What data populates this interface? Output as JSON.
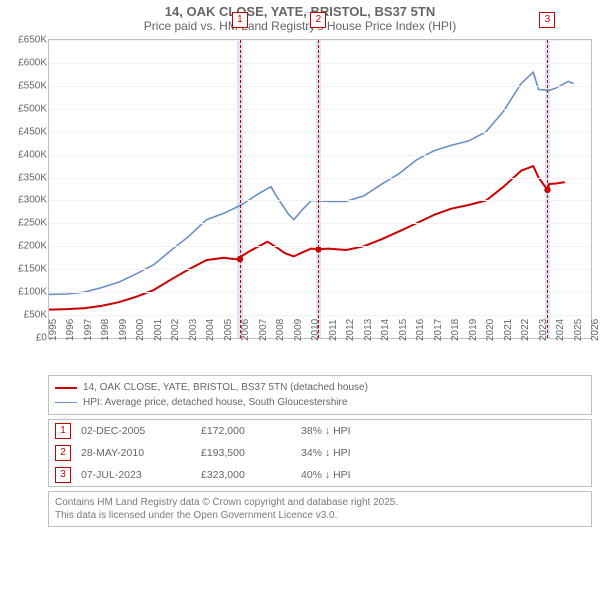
{
  "title": {
    "line1": "14, OAK CLOSE, YATE, BRISTOL, BS37 5TN",
    "line2": "Price paid vs. HM Land Registry's House Price Index (HPI)"
  },
  "chart": {
    "type": "line",
    "yaxis": {
      "min": 0,
      "max": 650000,
      "ticks": [
        0,
        50000,
        100000,
        150000,
        200000,
        250000,
        300000,
        350000,
        400000,
        450000,
        500000,
        550000,
        600000,
        650000
      ],
      "tick_labels": [
        "£0",
        "£50K",
        "£100K",
        "£150K",
        "£200K",
        "£250K",
        "£300K",
        "£350K",
        "£400K",
        "£450K",
        "£500K",
        "£550K",
        "£600K",
        "£650K"
      ],
      "label_fontsize": 10,
      "label_color": "#666666"
    },
    "xaxis": {
      "min": 1995,
      "max": 2026,
      "ticks": [
        1995,
        1996,
        1997,
        1998,
        1999,
        2000,
        2001,
        2002,
        2003,
        2004,
        2005,
        2006,
        2007,
        2008,
        2009,
        2010,
        2011,
        2012,
        2013,
        2014,
        2015,
        2016,
        2017,
        2018,
        2019,
        2020,
        2021,
        2022,
        2023,
        2024,
        2025,
        2026
      ],
      "label_fontsize": 10,
      "label_color": "#666666"
    },
    "gridline_color": "#f2f2f2",
    "background_color": "#ffffff",
    "border_color": "#c0c0c0",
    "marker_shade_color": "#dbe5f5",
    "marker_shade_width_years": 0.3,
    "series": [
      {
        "name": "price_paid",
        "label": "14, OAK CLOSE, YATE, BRISTOL, BS37 5TN (detached house)",
        "color": "#cc0000",
        "width": 2,
        "data": [
          [
            1995,
            62000
          ],
          [
            1996,
            63000
          ],
          [
            1997,
            65000
          ],
          [
            1998,
            70000
          ],
          [
            1999,
            78000
          ],
          [
            2000,
            90000
          ],
          [
            2001,
            105000
          ],
          [
            2002,
            128000
          ],
          [
            2003,
            150000
          ],
          [
            2004,
            170000
          ],
          [
            2005,
            175000
          ],
          [
            2005.6,
            172000
          ],
          [
            2005.92,
            172000
          ],
          [
            2006,
            178000
          ],
          [
            2006.5,
            190000
          ],
          [
            2007,
            200000
          ],
          [
            2007.5,
            210000
          ],
          [
            2008,
            198000
          ],
          [
            2008.5,
            185000
          ],
          [
            2009,
            178000
          ],
          [
            2009.5,
            187000
          ],
          [
            2010,
            195000
          ],
          [
            2010.41,
            193500
          ],
          [
            2011,
            195000
          ],
          [
            2012,
            192000
          ],
          [
            2013,
            200000
          ],
          [
            2014,
            215000
          ],
          [
            2015,
            232000
          ],
          [
            2016,
            250000
          ],
          [
            2017,
            268000
          ],
          [
            2018,
            282000
          ],
          [
            2019,
            290000
          ],
          [
            2020,
            300000
          ],
          [
            2021,
            330000
          ],
          [
            2022,
            365000
          ],
          [
            2022.7,
            375000
          ],
          [
            2023,
            350000
          ],
          [
            2023.51,
            323000
          ],
          [
            2023.6,
            336000
          ],
          [
            2024,
            337000
          ],
          [
            2024.5,
            340000
          ]
        ],
        "point_markers": [
          {
            "x": 2005.92,
            "y": 172000
          },
          {
            "x": 2010.41,
            "y": 193500
          },
          {
            "x": 2023.51,
            "y": 323000
          }
        ]
      },
      {
        "name": "hpi",
        "label": "HPI: Average price, detached house, South Gloucestershire",
        "color": "#6a8fc8",
        "width": 1.6,
        "data": [
          [
            1995,
            95000
          ],
          [
            1996,
            96000
          ],
          [
            1997,
            100000
          ],
          [
            1998,
            110000
          ],
          [
            1999,
            122000
          ],
          [
            2000,
            140000
          ],
          [
            2001,
            160000
          ],
          [
            2002,
            192000
          ],
          [
            2003,
            222000
          ],
          [
            2004,
            258000
          ],
          [
            2005,
            272000
          ],
          [
            2006,
            290000
          ],
          [
            2007,
            315000
          ],
          [
            2007.7,
            330000
          ],
          [
            2008,
            310000
          ],
          [
            2008.7,
            270000
          ],
          [
            2009,
            258000
          ],
          [
            2009.5,
            280000
          ],
          [
            2010,
            300000
          ],
          [
            2011,
            298000
          ],
          [
            2012,
            298000
          ],
          [
            2013,
            310000
          ],
          [
            2014,
            335000
          ],
          [
            2015,
            358000
          ],
          [
            2016,
            388000
          ],
          [
            2017,
            408000
          ],
          [
            2018,
            420000
          ],
          [
            2019,
            430000
          ],
          [
            2020,
            450000
          ],
          [
            2021,
            495000
          ],
          [
            2022,
            555000
          ],
          [
            2022.7,
            580000
          ],
          [
            2023,
            542000
          ],
          [
            2023.6,
            540000
          ],
          [
            2024,
            545000
          ],
          [
            2024.7,
            560000
          ],
          [
            2025,
            555000
          ]
        ]
      }
    ],
    "markers": [
      {
        "index": 1,
        "x": 2005.92
      },
      {
        "index": 2,
        "x": 2010.41
      },
      {
        "index": 3,
        "x": 2023.51
      }
    ]
  },
  "legend": {
    "border_color": "#c0c0c0"
  },
  "sales": [
    {
      "index": "1",
      "date": "02-DEC-2005",
      "price": "£172,000",
      "delta": "38% ↓ HPI"
    },
    {
      "index": "2",
      "date": "28-MAY-2010",
      "price": "£193,500",
      "delta": "34% ↓ HPI"
    },
    {
      "index": "3",
      "date": "07-JUL-2023",
      "price": "£323,000",
      "delta": "40% ↓ HPI"
    }
  ],
  "footer": {
    "line1": "Contains HM Land Registry data © Crown copyright and database right 2025.",
    "line2": "This data is licensed under the Open Government Licence v3.0."
  },
  "colors": {
    "text": "#666666",
    "footer_text": "#7a7a7a",
    "marker_border": "#cc0000"
  }
}
